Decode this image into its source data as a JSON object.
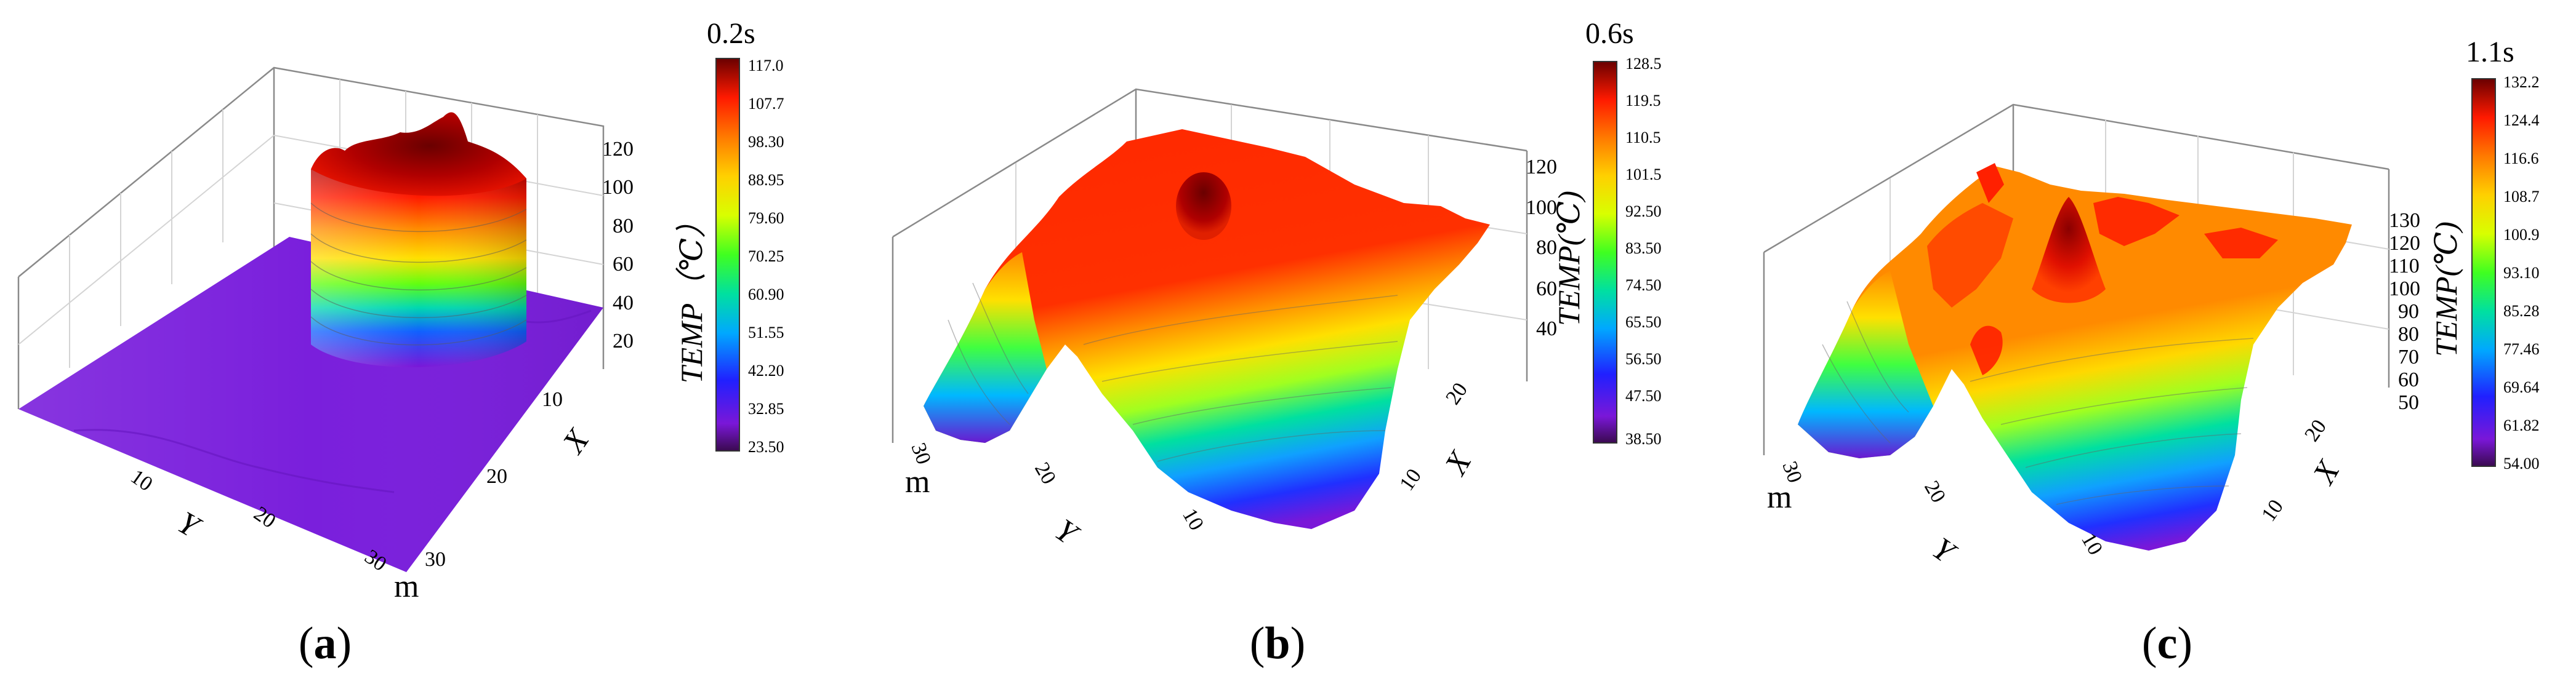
{
  "chart_data": [
    {
      "type": "surface",
      "panel": "(a)",
      "time_label": "0.2s",
      "zlabel": "TEMP（℃）",
      "x_axis": {
        "label": "X",
        "ticks": [
          "10",
          "20",
          "30"
        ]
      },
      "y_axis": {
        "label": "Y",
        "ticks": [
          "10",
          "20",
          "30"
        ]
      },
      "unit_label": "m",
      "z_ticks": [
        "20",
        "40",
        "60",
        "80",
        "100",
        "120"
      ],
      "zlim": [
        20,
        120
      ],
      "colorbar": {
        "min": 23.5,
        "max": 117.0,
        "ticks": [
          "117.0",
          "107.7",
          "98.30",
          "88.95",
          "79.60",
          "70.25",
          "60.90",
          "51.55",
          "42.20",
          "32.85",
          "23.50"
        ]
      },
      "description_values": {
        "base_temp": 23.5,
        "peak_temp": 117.0
      }
    },
    {
      "type": "surface",
      "panel": "(b)",
      "time_label": "0.6s",
      "zlabel": "TEMP(℃)",
      "x_axis": {
        "label": "X",
        "ticks": [
          "10",
          "20"
        ]
      },
      "y_axis": {
        "label": "Y",
        "ticks": [
          "10",
          "20",
          "30"
        ]
      },
      "unit_label": "m",
      "z_ticks": [
        "40",
        "60",
        "80",
        "100",
        "120"
      ],
      "zlim": [
        38.5,
        128.5
      ],
      "colorbar": {
        "min": 38.5,
        "max": 128.5,
        "ticks": [
          "128.5",
          "119.5",
          "110.5",
          "101.5",
          "92.50",
          "83.50",
          "74.50",
          "65.50",
          "56.50",
          "47.50",
          "38.50"
        ]
      },
      "description_values": {
        "base_temp": 38.5,
        "peak_temp": 128.5
      }
    },
    {
      "type": "surface",
      "panel": "(c)",
      "time_label": "1.1s",
      "zlabel": "TEMP(℃)",
      "x_axis": {
        "label": "X",
        "ticks": [
          "10",
          "20"
        ]
      },
      "y_axis": {
        "label": "Y",
        "ticks": [
          "10",
          "20",
          "30"
        ]
      },
      "unit_label": "m",
      "z_ticks": [
        "50",
        "60",
        "70",
        "80",
        "90",
        "100",
        "110",
        "120",
        "130"
      ],
      "zlim": [
        50,
        130
      ],
      "colorbar": {
        "min": 54.0,
        "max": 132.2,
        "ticks": [
          "132.2",
          "124.4",
          "116.6",
          "108.7",
          "100.9",
          "93.10",
          "85.28",
          "77.46",
          "69.64",
          "61.82",
          "54.00"
        ]
      },
      "description_values": {
        "base_temp": 54.0,
        "peak_temp": 132.2
      }
    }
  ]
}
